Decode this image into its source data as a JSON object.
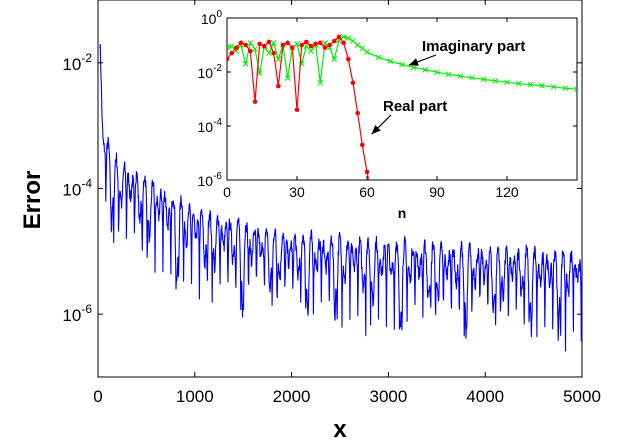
{
  "chart_data": [
    {
      "type": "line",
      "xlabel": "x",
      "ylabel": "Error",
      "xlim": [
        0,
        5000
      ],
      "ylim": [
        1e-07,
        0.1
      ],
      "yscale": "log",
      "xticks": [
        0,
        1000,
        2000,
        3000,
        4000,
        5000
      ],
      "xtick_labels": [
        "0",
        "1000",
        "2000",
        "3000",
        "4000",
        "5000"
      ],
      "yticks": [
        1e-06,
        0.0001,
        0.01
      ],
      "ytick_labels": [
        {
          "base": "10",
          "exp": "-6"
        },
        {
          "base": "10",
          "exp": "-4"
        },
        {
          "base": "10",
          "exp": "-2"
        }
      ],
      "grid": false,
      "series": [
        {
          "color": "#0000ff",
          "envelope": {
            "x": [
              20,
              60,
              100,
              200,
              400,
              700,
              1000,
              1500,
              2000,
              3000,
              4000,
              5000
            ],
            "y": [
              0.03,
              0.001,
              0.0006,
              0.0003,
              0.0002,
              0.0001,
              5e-05,
              3e-05,
              2e-05,
              1.5e-05,
              1.2e-05,
              1e-05
            ]
          }
        }
      ]
    },
    {
      "type": "line",
      "xlabel": "n",
      "ylabel": "",
      "xlim": [
        0,
        150
      ],
      "ylim": [
        1e-06,
        1
      ],
      "yscale": "log",
      "xticks": [
        0,
        30,
        60,
        90,
        120
      ],
      "xtick_labels": [
        "0",
        "30",
        "60",
        "90",
        "120"
      ],
      "yticks": [
        1e-06,
        0.0001,
        0.01,
        1
      ],
      "ytick_labels": [
        {
          "base": "10",
          "exp": "-6"
        },
        {
          "base": "10",
          "exp": "-4"
        },
        {
          "base": "10",
          "exp": "-2"
        },
        {
          "base": "10",
          "exp": "0"
        }
      ],
      "grid": false,
      "series": [
        {
          "name": "Imaginary part",
          "color": "#00ee00",
          "marker": "x",
          "x": [
            0,
            2,
            4,
            6,
            8,
            10,
            12,
            14,
            16,
            18,
            20,
            22,
            24,
            26,
            28,
            30,
            32,
            34,
            36,
            38,
            40,
            42,
            44,
            46,
            48,
            50,
            52,
            54,
            56,
            58,
            60,
            65,
            70,
            75,
            80,
            85,
            90,
            95,
            100,
            105,
            110,
            115,
            120,
            125,
            130,
            135,
            140,
            145,
            150
          ],
          "y": [
            0.08,
            0.09,
            0.06,
            0.1,
            0.02,
            0.12,
            0.07,
            0.009,
            0.09,
            0.05,
            0.12,
            0.03,
            0.1,
            0.006,
            0.08,
            0.11,
            0.02,
            0.09,
            0.06,
            0.1,
            0.004,
            0.12,
            0.08,
            0.03,
            0.15,
            0.2,
            0.18,
            0.14,
            0.1,
            0.075,
            0.055,
            0.035,
            0.025,
            0.019,
            0.015,
            0.012,
            0.0098,
            0.0082,
            0.007,
            0.0061,
            0.0053,
            0.0047,
            0.0042,
            0.0037,
            0.0034,
            0.0031,
            0.0028,
            0.0025,
            0.0023
          ]
        },
        {
          "name": "Real part",
          "color": "#ff0000",
          "marker": "o",
          "x": [
            0,
            2,
            4,
            6,
            8,
            10,
            12,
            14,
            16,
            18,
            20,
            22,
            24,
            26,
            28,
            30,
            32,
            34,
            36,
            38,
            40,
            42,
            44,
            46,
            48,
            50,
            52,
            54,
            56,
            58,
            60,
            62
          ],
          "y": [
            0.03,
            0.05,
            0.08,
            0.12,
            0.1,
            0.06,
            0.0008,
            0.11,
            0.09,
            0.13,
            0.05,
            0.003,
            0.1,
            0.12,
            0.08,
            0.0004,
            0.1,
            0.13,
            0.09,
            0.11,
            0.12,
            0.08,
            0.1,
            0.14,
            0.2,
            0.12,
            0.03,
            0.004,
            0.0003,
            2e-05,
            2e-06,
            3e-07
          ]
        }
      ],
      "annotations": [
        {
          "text": "Imaginary part",
          "arrow_to": [
            78,
            0.018
          ]
        },
        {
          "text": "Real part",
          "arrow_to": [
            62,
            5e-05
          ]
        }
      ]
    }
  ]
}
